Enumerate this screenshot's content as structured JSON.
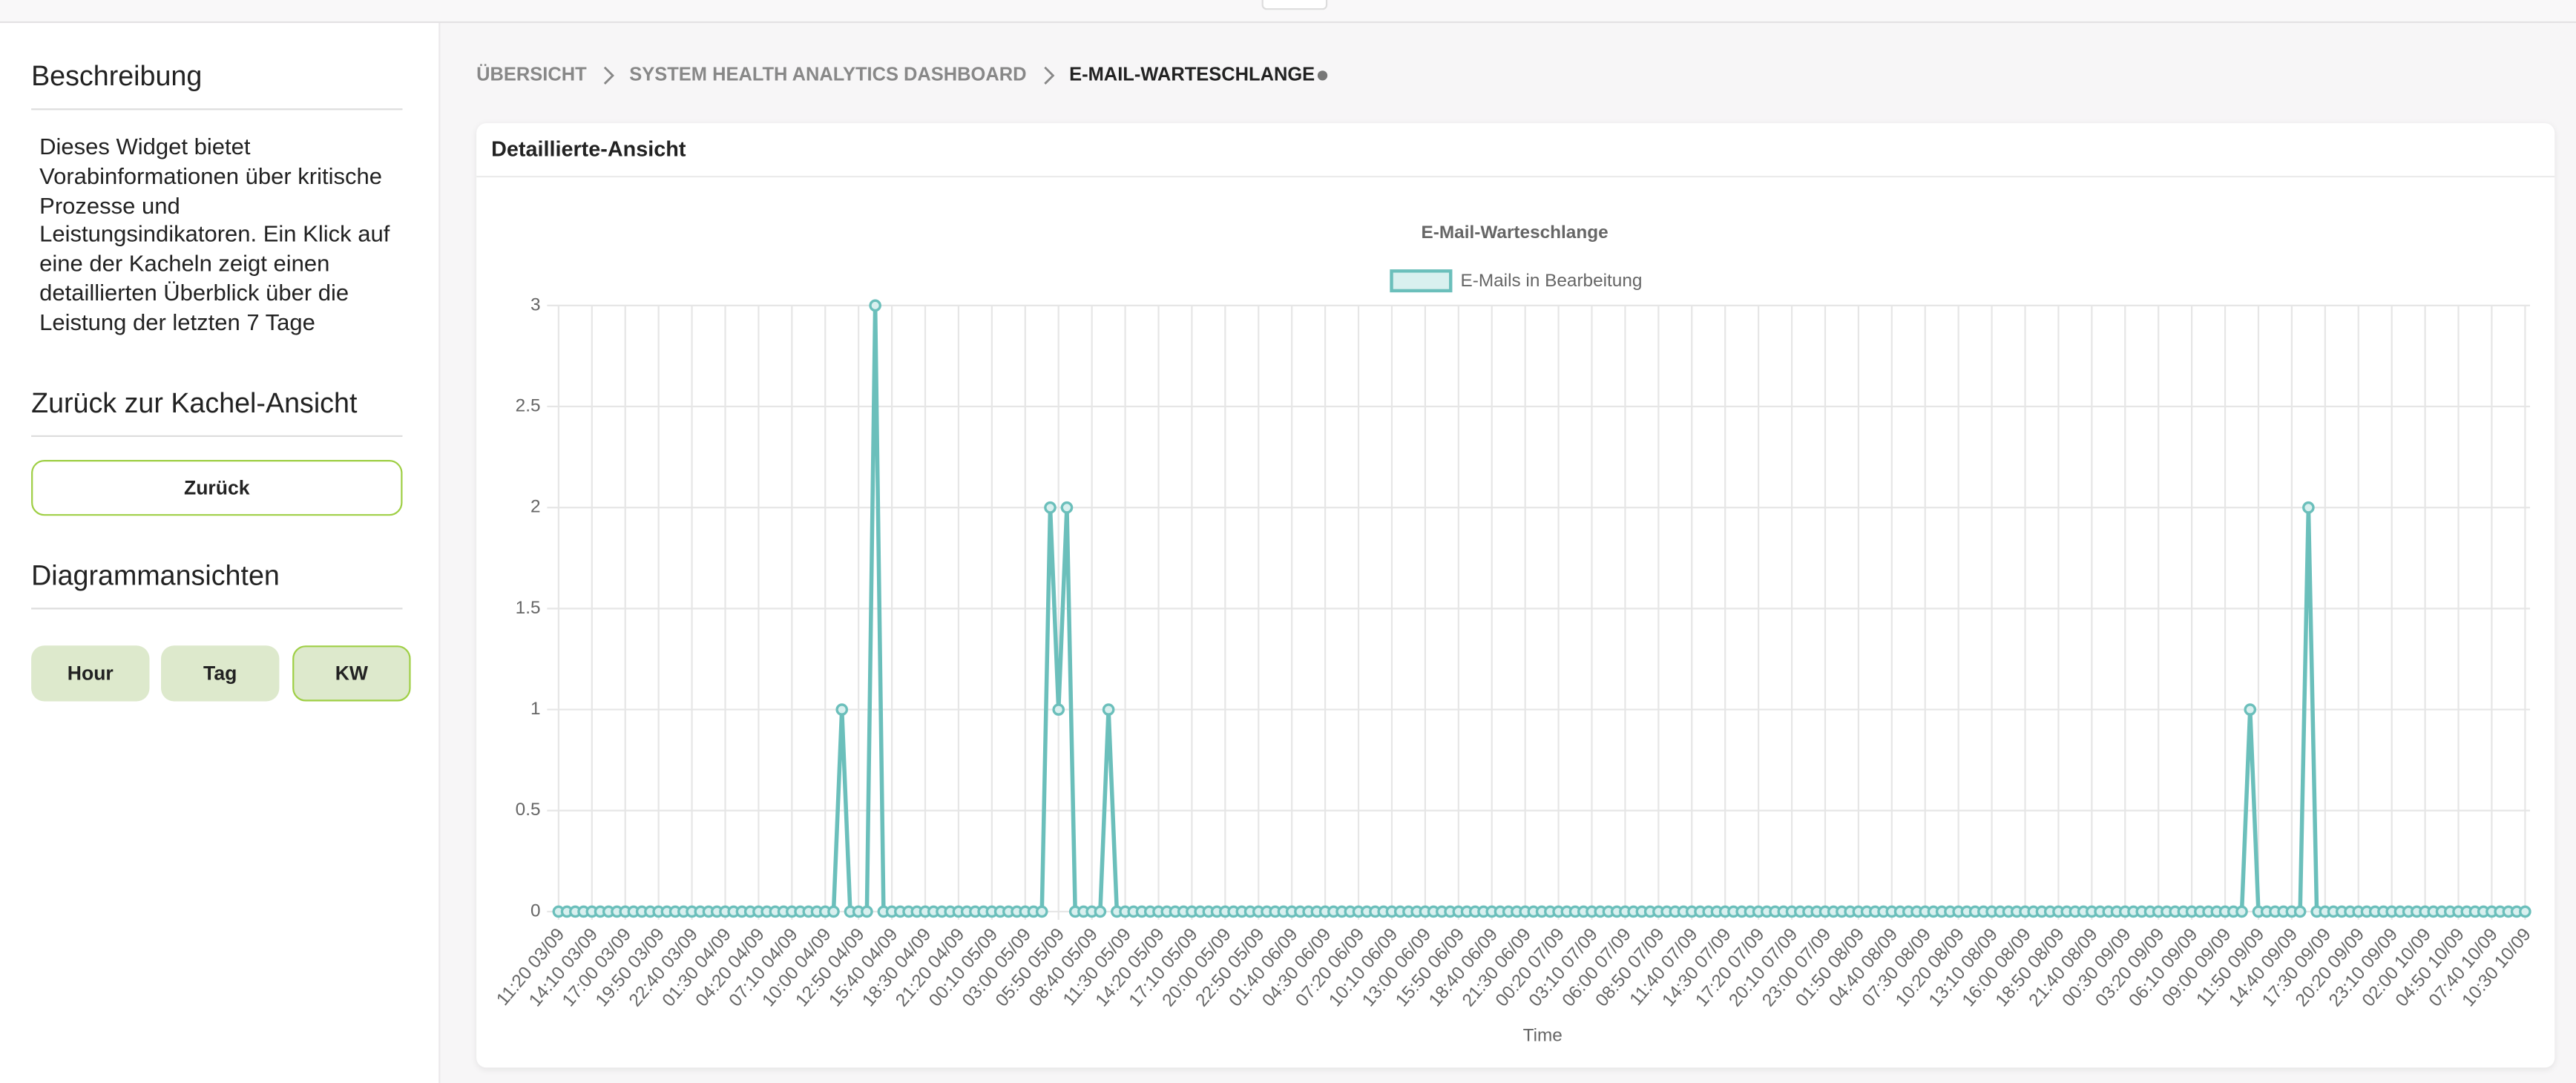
{
  "sidebar": {
    "description_title": "Beschreibung",
    "description": "Dieses Widget bietet Vorabinformationen über kritische Prozesse und Leistungsindikatoren. Ein Klick auf eine der Kacheln zeigt einen detaillierten Überblick über die Leistung der letzten 7 Tage",
    "back_title": "Zurück zur Kachel-Ansicht",
    "back_button": "Zurück",
    "views_title": "Diagrammansichten",
    "view_buttons": [
      "Hour",
      "Tag",
      "KW"
    ]
  },
  "breadcrumb": [
    "ÜBERSICHT",
    "SYSTEM HEALTH ANALYTICS DASHBOARD",
    "E-MAIL-WARTESCHLANGE"
  ],
  "panel_title": "Detaillierte-Ansicht",
  "chart_data": {
    "type": "line",
    "title": "E-Mail-Warteschlange",
    "x_label": "Time",
    "categories": [
      "11:20 03/09",
      null,
      null,
      null,
      "14:10 03/09",
      null,
      null,
      null,
      "17:00 03/09",
      null,
      null,
      null,
      "19:50 03/09",
      null,
      null,
      null,
      "22:40 03/09",
      null,
      null,
      null,
      "01:30 04/09",
      null,
      null,
      null,
      "04:20 04/09",
      null,
      null,
      null,
      "07:10 04/09",
      null,
      null,
      null,
      "10:00 04/09",
      null,
      null,
      null,
      "12:50 04/09",
      null,
      null,
      null,
      "15:40 04/09",
      null,
      null,
      null,
      "18:30 04/09",
      null,
      null,
      null,
      "21:20 04/09",
      null,
      null,
      null,
      "00:10 05/09",
      null,
      null,
      null,
      "03:00 05/09",
      null,
      null,
      null,
      "05:50 05/09",
      null,
      null,
      null,
      "08:40 05/09",
      null,
      null,
      null,
      "11:30 05/09",
      null,
      null,
      null,
      "14:20 05/09",
      null,
      null,
      null,
      "17:10 05/09",
      null,
      null,
      null,
      "20:00 05/09",
      null,
      null,
      null,
      "22:50 05/09",
      null,
      null,
      null,
      "01:40 06/09",
      null,
      null,
      null,
      "04:30 06/09",
      null,
      null,
      null,
      "07:20 06/09",
      null,
      null,
      null,
      "10:10 06/09",
      null,
      null,
      null,
      "13:00 06/09",
      null,
      null,
      null,
      "15:50 06/09",
      null,
      null,
      null,
      "18:40 06/09",
      null,
      null,
      null,
      "21:30 06/09",
      null,
      null,
      null,
      "00:20 07/09",
      null,
      null,
      null,
      "03:10 07/09",
      null,
      null,
      null,
      "06:00 07/09",
      null,
      null,
      null,
      "08:50 07/09",
      null,
      null,
      null,
      "11:40 07/09",
      null,
      null,
      null,
      "14:30 07/09",
      null,
      null,
      null,
      "17:20 07/09",
      null,
      null,
      null,
      "20:10 07/09",
      null,
      null,
      null,
      "23:00 07/09",
      null,
      null,
      null,
      "01:50 08/09",
      null,
      null,
      null,
      "04:40 08/09",
      null,
      null,
      null,
      "07:30 08/09",
      null,
      null,
      null,
      "10:20 08/09",
      null,
      null,
      null,
      "13:10 08/09",
      null,
      null,
      null,
      "16:00 08/09",
      null,
      null,
      null,
      "18:50 08/09",
      null,
      null,
      null,
      "21:40 08/09",
      null,
      null,
      null,
      "00:30 09/09",
      null,
      null,
      null,
      "03:20 09/09",
      null,
      null,
      null,
      "06:10 09/09",
      null,
      null,
      null,
      "09:00 09/09",
      null,
      null,
      null,
      "11:50 09/09",
      null,
      null,
      null,
      "14:40 09/09",
      null,
      null,
      null,
      "17:30 09/09",
      null,
      null,
      null,
      "20:20 09/09",
      null,
      null,
      null,
      "23:10 09/09",
      null,
      null,
      null,
      "02:00 10/09",
      null,
      null,
      null,
      "04:50 10/09",
      null,
      null,
      null,
      "07:40 10/09",
      null,
      null,
      null,
      "10:30 10/09"
    ],
    "series": [
      {
        "name": "E-Mails in Bearbeitung",
        "color": "#6bbfbb",
        "fill": "#d9f0ef",
        "values": [
          0,
          0,
          0,
          0,
          0,
          0,
          0,
          0,
          0,
          0,
          0,
          0,
          0,
          0,
          0,
          0,
          0,
          0,
          0,
          0,
          0,
          0,
          0,
          0,
          0,
          0,
          0,
          0,
          0,
          0,
          0,
          0,
          0,
          0,
          1,
          0,
          0,
          0,
          3,
          0,
          0,
          0,
          0,
          0,
          0,
          0,
          0,
          0,
          0,
          0,
          0,
          0,
          0,
          0,
          0,
          0,
          0,
          0,
          0,
          2,
          1,
          2,
          0,
          0,
          0,
          0,
          1,
          0,
          0,
          0,
          0,
          0,
          0,
          0,
          0,
          0,
          0,
          0,
          0,
          0,
          0,
          0,
          0,
          0,
          0,
          0,
          0,
          0,
          0,
          0,
          0,
          0,
          0,
          0,
          0,
          0,
          0,
          0,
          0,
          0,
          0,
          0,
          0,
          0,
          0,
          0,
          0,
          0,
          0,
          0,
          0,
          0,
          0,
          0,
          0,
          0,
          0,
          0,
          0,
          0,
          0,
          0,
          0,
          0,
          0,
          0,
          0,
          0,
          0,
          0,
          0,
          0,
          0,
          0,
          0,
          0,
          0,
          0,
          0,
          0,
          0,
          0,
          0,
          0,
          0,
          0,
          0,
          0,
          0,
          0,
          0,
          0,
          0,
          0,
          0,
          0,
          0,
          0,
          0,
          0,
          0,
          0,
          0,
          0,
          0,
          0,
          0,
          0,
          0,
          0,
          0,
          0,
          0,
          0,
          0,
          0,
          0,
          0,
          0,
          0,
          0,
          0,
          0,
          0,
          0,
          0,
          0,
          0,
          0,
          0,
          0,
          0,
          0,
          0,
          0,
          0,
          0,
          0,
          0,
          0,
          0,
          0,
          0,
          1,
          0,
          0,
          0,
          0,
          0,
          0,
          2,
          0,
          0,
          0,
          0,
          0,
          0,
          0,
          0,
          0,
          0,
          0,
          0,
          0,
          0,
          0,
          0,
          0,
          0,
          0,
          0,
          0,
          0,
          0,
          0,
          0,
          0
        ]
      }
    ],
    "ylim": [
      0,
      3
    ],
    "yticks": [
      0,
      0.5,
      1,
      1.5,
      2,
      2.5,
      3
    ],
    "grid": true
  }
}
